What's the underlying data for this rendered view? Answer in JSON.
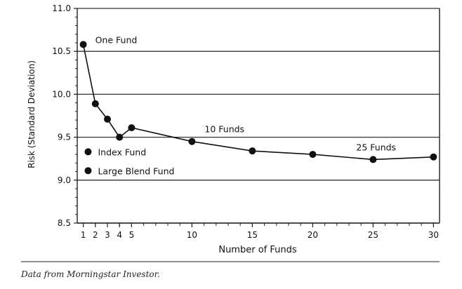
{
  "chart_data": {
    "type": "line",
    "title": "",
    "xlabel": "Number of Funds",
    "ylabel": "Risk (Standard Deviation)",
    "xlim": [
      0.5,
      30.5
    ],
    "ylim": [
      8.5,
      11.0
    ],
    "x_ticks": [
      1,
      2,
      3,
      4,
      5,
      10,
      15,
      20,
      25,
      30
    ],
    "y_ticks": [
      "8.5",
      "9.0",
      "9.5",
      "10.0",
      "10.5",
      "11.0"
    ],
    "grid": "horizontal",
    "series": [
      {
        "x": [
          1,
          2,
          3,
          4,
          5,
          10,
          15,
          20,
          25,
          30
        ],
        "y": [
          10.58,
          9.89,
          9.71,
          9.5,
          9.61,
          9.45,
          9.34,
          9.3,
          9.24,
          9.27
        ]
      }
    ],
    "points": [
      {
        "label": "Index Fund",
        "x": 1.4,
        "y": 9.33
      },
      {
        "label": "Large Blend Fund",
        "x": 1.4,
        "y": 9.11
      }
    ],
    "annotations": [
      {
        "text": "One Fund",
        "x": 1,
        "y": 10.58
      },
      {
        "text": "10 Funds",
        "x": 10,
        "y": 9.45
      },
      {
        "text": "25 Funds",
        "x": 25,
        "y": 9.24
      }
    ]
  },
  "source_note": "Data from Morningstar Investor."
}
